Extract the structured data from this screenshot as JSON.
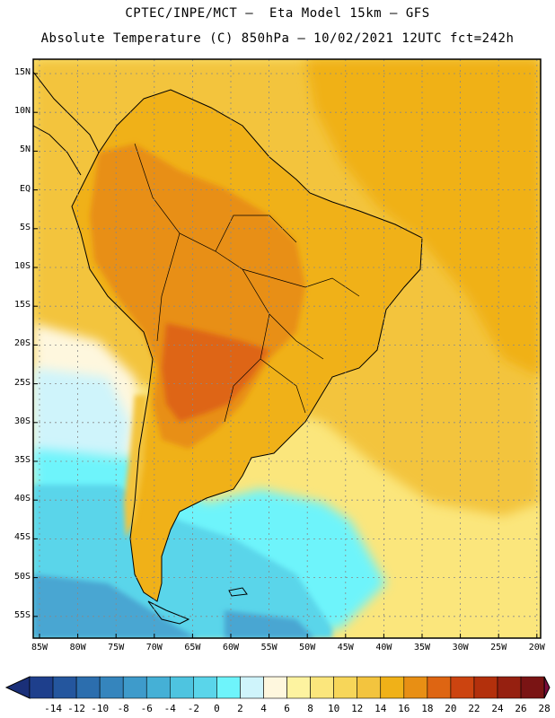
{
  "title": {
    "line1": "CPTEC/INPE/MCT –  Eta Model 15km – GFS",
    "line2": "Absolute Temperature (C) 850hPa – 10/02/2021 12UTC fct=242h"
  },
  "lat_labels": [
    "15N",
    "10N",
    "5N",
    "EQ",
    "5S",
    "10S",
    "15S",
    "20S",
    "25S",
    "30S",
    "35S",
    "40S",
    "45S",
    "50S",
    "55S"
  ],
  "lon_labels": [
    "85W",
    "80W",
    "75W",
    "70W",
    "65W",
    "60W",
    "55W",
    "50W",
    "45W",
    "40W",
    "35W",
    "30W",
    "25W",
    "20W"
  ],
  "colorbar": {
    "labels": [
      "-14",
      "-12",
      "-10",
      "-8",
      "-6",
      "-4",
      "-2",
      "0",
      "2",
      "4",
      "6",
      "8",
      "10",
      "12",
      "14",
      "16",
      "18",
      "20",
      "22",
      "24",
      "26",
      "28"
    ],
    "colors": [
      "#1e3f8c",
      "#24569e",
      "#2c6eae",
      "#3585bd",
      "#3e9bcb",
      "#45b0d6",
      "#4ec4e0",
      "#5ad5ea",
      "#6ef4fb",
      "#cff4fb",
      "#fef7de",
      "#fdf3a0",
      "#fbe67c",
      "#f7d659",
      "#f3c43e",
      "#f0b118",
      "#e88f14",
      "#de6512",
      "#cc4410",
      "#b3300c",
      "#962010",
      "#7a1414"
    ],
    "under_color": "#1a2f78",
    "over_color": "#7c0c3c"
  },
  "map_colors": {
    "ocean_cold": "#4aa6d2",
    "ocean_cool": "#5ad5ea",
    "ocean_cyan": "#6ef4fb",
    "ocean_pale": "#cff4fb",
    "ocean_cream": "#fef7de",
    "ocean_yellow": "#fbe67c",
    "ocean_warm": "#f3c43e",
    "ocean_orange": "#f0b118",
    "land_warm": "#f0b118",
    "land_hot": "#e88f14",
    "land_hotter": "#de6512"
  }
}
